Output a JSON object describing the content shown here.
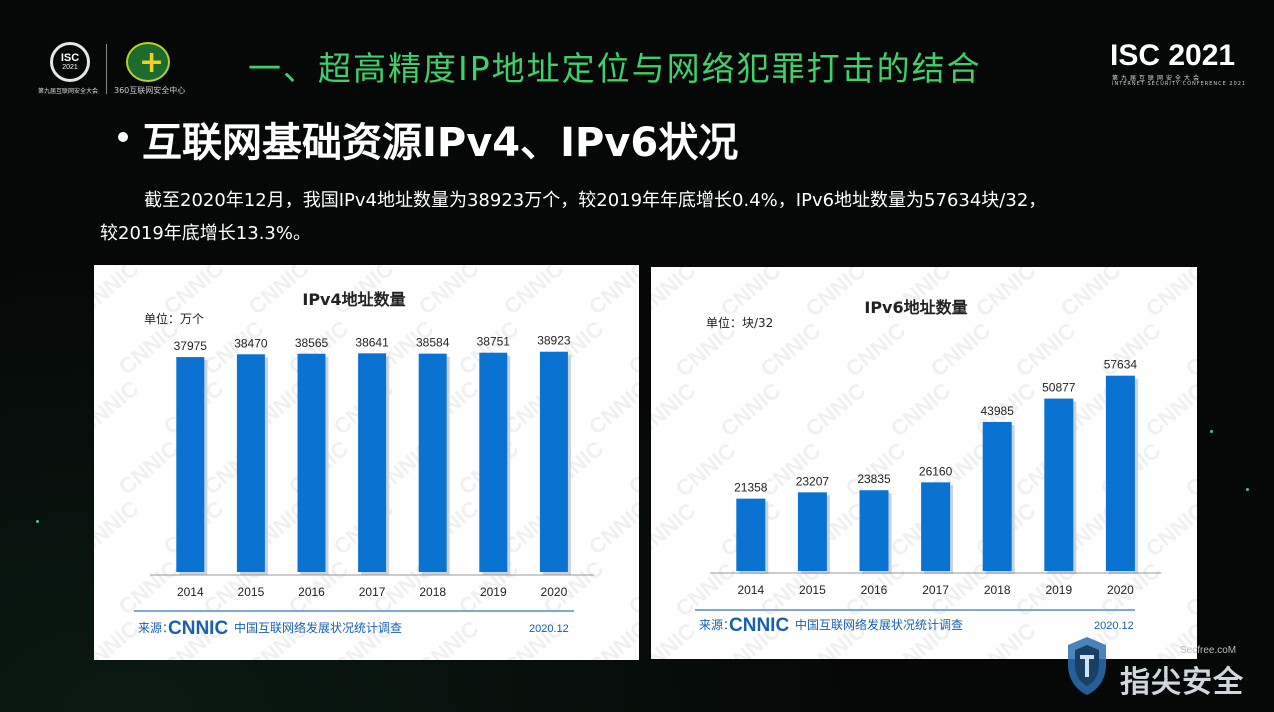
{
  "header": {
    "isc_badge_line1": "ISC",
    "isc_badge_line2": "2021",
    "isc_caption": "第九届互联网安全大会",
    "partner_caption": "360互联网安全中心",
    "section_title": "一、超高精度IP地址定位与网络犯罪打击的结合",
    "brand": "ISC 2021",
    "brand_sub_cn": "第九届互联网安全大会",
    "brand_sub_en": "INTERNET SECURITY CONFERENCE 2021"
  },
  "main": {
    "heading": "互联网基础资源IPv4、IPv6状况",
    "body_line1": "截至2020年12月，我国IPv4地址数量为38923万个，较2019年年底增长0.4%，IPv6地址数量为57634块/32，",
    "body_line2": "较2019年底增长13.3%。"
  },
  "colors": {
    "accent_green": "#3fd06b",
    "bar_blue": "#0a73d1",
    "source_blue": "#1a5fb0"
  },
  "chart_data": [
    {
      "type": "bar",
      "title": "IPv4地址数量",
      "unit": "单位：万个",
      "categories": [
        "2014",
        "2015",
        "2016",
        "2017",
        "2018",
        "2019",
        "2020"
      ],
      "values": [
        37975,
        38470,
        38565,
        38641,
        38584,
        38751,
        38923
      ],
      "ylim": [
        0,
        44000
      ],
      "source_label": "来源：",
      "source_logo": "CNNIC",
      "source_org": "中国互联网络发展状况统计调查",
      "source_date": "2020.12",
      "watermark": "CNNIC"
    },
    {
      "type": "bar",
      "title": "IPv6地址数量",
      "unit": "单位：块/32",
      "categories": [
        "2014",
        "2015",
        "2016",
        "2017",
        "2018",
        "2019",
        "2020"
      ],
      "values": [
        21358,
        23207,
        23835,
        26160,
        43985,
        50877,
        57634
      ],
      "ylim": [
        0,
        72000
      ],
      "source_label": "来源：",
      "source_logo": "CNNIC",
      "source_org": "中国互联网络发展状况统计调查",
      "source_date": "2020.12",
      "watermark": "CNNIC"
    }
  ],
  "footer": {
    "site": "Secfree.coM",
    "brand": "指尖安全",
    "icon": "shield-icon"
  }
}
